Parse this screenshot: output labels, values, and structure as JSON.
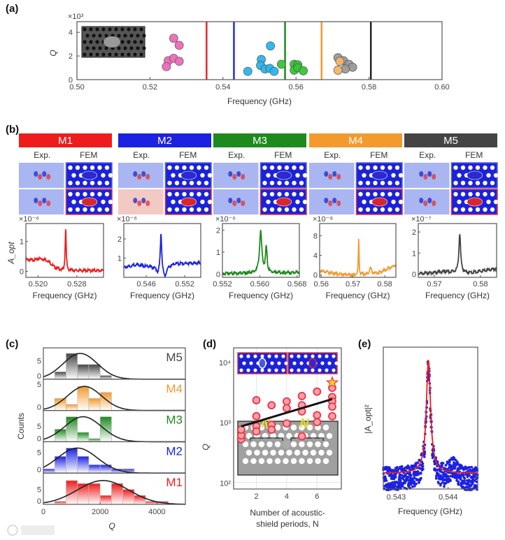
{
  "panel_labels": [
    "(a)",
    "(b)",
    "(c)",
    "(d)",
    "(e)"
  ],
  "watermark": "大数跨境",
  "chart_data": [
    {
      "id": "a",
      "type": "scatter",
      "xlabel": "Frequency (GHz)",
      "ylabel": "Q",
      "y_multiplier": "×10³",
      "xlim": [
        0.5,
        0.6
      ],
      "ylim": [
        0,
        4.9
      ],
      "xticks": [
        "0.50",
        "0.52",
        "0.54",
        "0.56",
        "0.58",
        "0.60"
      ],
      "yticks": [
        "0",
        "2",
        "4"
      ],
      "vlines": [
        {
          "freq": 0.5355,
          "color": "#e8262a"
        },
        {
          "freq": 0.543,
          "color": "#1f2fe0"
        },
        {
          "freq": 0.557,
          "color": "#1e8a1e"
        },
        {
          "freq": 0.567,
          "color": "#f39a2e"
        },
        {
          "freq": 0.5805,
          "color": "#222222"
        }
      ],
      "series": [
        {
          "name": "pink",
          "color": "#f06ab8",
          "points": [
            [
              0.5265,
              3.5
            ],
            [
              0.528,
              2.9
            ],
            [
              0.525,
              1.6
            ],
            [
              0.5265,
              1.8
            ],
            [
              0.528,
              1.55
            ],
            [
              0.5245,
              1.1
            ]
          ]
        },
        {
          "name": "blue",
          "color": "#29b6f0",
          "points": [
            [
              0.5468,
              0.7
            ],
            [
              0.5505,
              1.7
            ],
            [
              0.5503,
              1.2
            ],
            [
              0.5515,
              0.9
            ],
            [
              0.553,
              2.85
            ],
            [
              0.5528,
              0.95
            ],
            [
              0.554,
              0.7
            ]
          ]
        },
        {
          "name": "gray",
          "color": "#9a9a9a",
          "points": [
            [
              0.5715,
              1.85
            ],
            [
              0.573,
              1.6
            ],
            [
              0.5745,
              1.3
            ],
            [
              0.5755,
              1.05
            ],
            [
              0.5735,
              0.9
            ]
          ]
        },
        {
          "name": "orange",
          "color": "#f7b46a",
          "points": [
            [
              0.572,
              1.55
            ],
            [
              0.5715,
              0.8
            ]
          ]
        },
        {
          "name": "green",
          "color": "#33c833",
          "points": [
            [
              0.556,
              1.3
            ],
            [
              0.5595,
              1.3
            ],
            [
              0.5605,
              1.25
            ],
            [
              0.5595,
              0.8
            ],
            [
              0.5605,
              1.0
            ],
            [
              0.562,
              0.75
            ]
          ]
        }
      ]
    },
    {
      "id": "b",
      "type": "line",
      "xlabel": "Frequency (GHz)",
      "ylabel": "A_opt",
      "exp_label": "Exp.",
      "fem_label": "FEM",
      "modes": [
        {
          "label": "M1",
          "color": "#ee1c1c",
          "multiplier": "×10⁻⁶",
          "xlim": [
            0.5175,
            0.5335
          ],
          "ylim": [
            -0.2,
            1.6
          ],
          "xticks": [
            0.52,
            0.528
          ],
          "xtick_labels": [
            "0.520",
            "0.528"
          ],
          "yticks": [
            0,
            1
          ],
          "ytick_labels": [
            "0",
            "1"
          ],
          "baseline": [
            [
              0.5175,
              0.42
            ],
            [
              0.519,
              0.4
            ],
            [
              0.5205,
              0.45
            ],
            [
              0.522,
              0.38
            ],
            [
              0.5235,
              0.15
            ],
            [
              0.525,
              0.05
            ],
            [
              0.5335,
              0.05
            ]
          ],
          "peaks": [
            {
              "f": 0.5257,
              "amp": 1.45,
              "w": 0.00012
            }
          ]
        },
        {
          "label": "M2",
          "color": "#1c22e0",
          "multiplier": "×10⁻⁶",
          "xlim": [
            0.5425,
            0.5545
          ],
          "ylim": [
            0,
            2.8
          ],
          "xticks": [
            0.546,
            0.552
          ],
          "xtick_labels": [
            "0.546",
            "0.552"
          ],
          "yticks": [
            1,
            2
          ],
          "ytick_labels": [
            "1",
            "2"
          ],
          "baseline": [
            [
              0.5425,
              0.55
            ],
            [
              0.5445,
              0.7
            ],
            [
              0.5465,
              0.6
            ],
            [
              0.548,
              0.5
            ],
            [
              0.5505,
              0.75
            ],
            [
              0.5545,
              0.78
            ]
          ],
          "peaks": [
            {
              "f": 0.5483,
              "amp": 2.0,
              "w": 0.00012
            },
            {
              "f": 0.5489,
              "amp": -0.55,
              "w": 0.0003
            },
            {
              "f": 0.5478,
              "amp": -0.25,
              "w": 0.0002
            }
          ]
        },
        {
          "label": "M3",
          "color": "#1e8a1e",
          "multiplier": "×10⁻⁶",
          "xlim": [
            0.552,
            0.5685
          ],
          "ylim": [
            -0.15,
            2.3
          ],
          "xticks": [
            0.552,
            0.56,
            0.568
          ],
          "xtick_labels": [
            "0.552",
            "0.560",
            "0.568"
          ],
          "yticks": [
            0,
            1,
            2
          ],
          "ytick_labels": [
            "0",
            "1",
            "2"
          ],
          "baseline": [
            [
              0.552,
              0.05
            ],
            [
              0.5685,
              0.1
            ]
          ],
          "peaks": [
            {
              "f": 0.5602,
              "amp": 1.9,
              "w": 0.0003
            },
            {
              "f": 0.5614,
              "amp": 1.15,
              "w": 0.0002
            }
          ]
        },
        {
          "label": "M4",
          "color": "#f39a2e",
          "multiplier": "×10⁻⁸",
          "xlim": [
            0.5595,
            0.5835
          ],
          "ylim": [
            -0.5,
            10.5
          ],
          "xticks": [
            0.56,
            0.57,
            0.58
          ],
          "xtick_labels": [
            "0.56",
            "0.57",
            "0.58"
          ],
          "yticks": [
            0,
            4,
            8
          ],
          "ytick_labels": [
            "0",
            "4",
            "8"
          ],
          "baseline": [
            [
              0.5595,
              1.0
            ],
            [
              0.565,
              0.3
            ],
            [
              0.571,
              0.1
            ],
            [
              0.578,
              0.5
            ],
            [
              0.5835,
              2.2
            ]
          ],
          "peaks": [
            {
              "f": 0.5718,
              "amp": 7.6,
              "w": 0.00012
            },
            {
              "f": 0.5755,
              "amp": 1.1,
              "w": 0.0004
            }
          ]
        },
        {
          "label": "M5",
          "color": "#444444",
          "multiplier": "×10⁻⁷",
          "xlim": [
            0.5665,
            0.5835
          ],
          "ylim": [
            -0.15,
            2.4
          ],
          "xticks": [
            0.57,
            0.58
          ],
          "xtick_labels": [
            "0.57",
            "0.58"
          ],
          "yticks": [
            0,
            1,
            2
          ],
          "ytick_labels": [
            "0",
            "1",
            "2"
          ],
          "baseline": [
            [
              0.5665,
              0.05
            ],
            [
              0.572,
              0.15
            ],
            [
              0.578,
              0.1
            ],
            [
              0.5835,
              0.3
            ]
          ],
          "peaks": [
            {
              "f": 0.5755,
              "amp": 1.85,
              "w": 0.00022
            }
          ]
        }
      ]
    },
    {
      "id": "c",
      "type": "bar",
      "xlabel": "Q",
      "ylabel": "Counts",
      "xlim": [
        0,
        5000
      ],
      "xticks": [
        0,
        2000,
        4000
      ],
      "xtick_labels": [
        "0",
        "2000",
        "4000"
      ],
      "bin_width": 400,
      "rows": [
        {
          "label": "M5",
          "color": "#444444",
          "ymax": 8.5,
          "yticks": [
            "0",
            "5"
          ],
          "counts": [
            0,
            2,
            7,
            4,
            4,
            1,
            0,
            0,
            0,
            0,
            0
          ],
          "fit": {
            "mean": 1300,
            "sd": 600,
            "amp": 7
          }
        },
        {
          "label": "M4",
          "color": "#f39a2e",
          "ymax": 5.2,
          "yticks": [
            "0",
            "5"
          ],
          "counts": [
            0,
            2,
            1,
            4,
            2,
            3,
            0,
            0,
            0,
            0,
            0
          ],
          "fit": {
            "mean": 1450,
            "sd": 600,
            "amp": 4
          }
        },
        {
          "label": "M3",
          "color": "#1e8a1e",
          "ymax": 10,
          "yticks": [
            "0",
            "5"
          ],
          "counts": [
            0,
            4,
            8,
            3,
            1,
            8,
            0,
            0,
            0,
            0,
            0
          ],
          "fit": {
            "mean": 1400,
            "sd": 650,
            "amp": 8
          }
        },
        {
          "label": "M2",
          "color": "#1c22e0",
          "ymax": 7.5,
          "yticks": [
            "0",
            "5"
          ],
          "counts": [
            1,
            4,
            6,
            4,
            2,
            2,
            1,
            1,
            0,
            0,
            0
          ],
          "fit": {
            "mean": 1200,
            "sd": 700,
            "amp": 6
          }
        },
        {
          "label": "M1",
          "color": "#ee1c1c",
          "ymax": 10.5,
          "yticks": [
            "0",
            "5"
          ],
          "counts": [
            0,
            1,
            8,
            7,
            7,
            3,
            7,
            5,
            3,
            1,
            1
          ],
          "fit": {
            "mean": 2100,
            "sd": 900,
            "amp": 8
          }
        }
      ]
    },
    {
      "id": "d",
      "type": "scatter",
      "xlabel_line1": "Number of acoustic-",
      "xlabel_line2": "shield periods, N",
      "ylabel": "Q",
      "yscale": "log",
      "xlim": [
        0.5,
        7.6
      ],
      "ylim_log10": [
        1.89,
        4.23
      ],
      "xticks": [
        2,
        4,
        6
      ],
      "xtick_labels": [
        "2",
        "4",
        "6"
      ],
      "yticks": [
        100,
        1000,
        10000
      ],
      "ytick_labels": [
        "10²",
        "10³",
        "10⁴"
      ],
      "points": [
        [
          1,
          520
        ],
        [
          1,
          600
        ],
        [
          1,
          750
        ],
        [
          2,
          2300
        ],
        [
          2,
          1250
        ],
        [
          2,
          850
        ],
        [
          2,
          700
        ],
        [
          3,
          1900
        ],
        [
          3,
          900
        ],
        [
          3,
          750
        ],
        [
          4,
          2200
        ],
        [
          4,
          1700
        ],
        [
          4,
          950
        ],
        [
          5,
          2700
        ],
        [
          5,
          1900
        ],
        [
          5,
          1500
        ],
        [
          5,
          580
        ],
        [
          6,
          3200
        ],
        [
          6,
          1300
        ],
        [
          6,
          1000
        ],
        [
          7,
          3700
        ],
        [
          7,
          2600
        ],
        [
          7,
          2200
        ],
        [
          7,
          1800
        ],
        [
          7,
          1250
        ]
      ],
      "star": [
        7,
        4500
      ],
      "fit_line": [
        [
          1,
          850
        ],
        [
          7,
          2400
        ]
      ],
      "inset_label": "N",
      "color": "#ee3344"
    },
    {
      "id": "e",
      "type": "line",
      "xlabel": "Frequency (GHz)",
      "ylabel": "|A_opt|²",
      "xlim": [
        0.54275,
        0.54457
      ],
      "xticks": [
        0.543,
        0.544
      ],
      "xtick_labels": [
        "0.543",
        "0.544"
      ],
      "ylim": [
        0,
        1.08
      ],
      "data_color": "#1c22e0",
      "fit_color": "#ee1c1c",
      "fit": {
        "f0": 0.54362,
        "w": 5e-05,
        "amp": 0.86,
        "offset": 0.12
      }
    }
  ]
}
